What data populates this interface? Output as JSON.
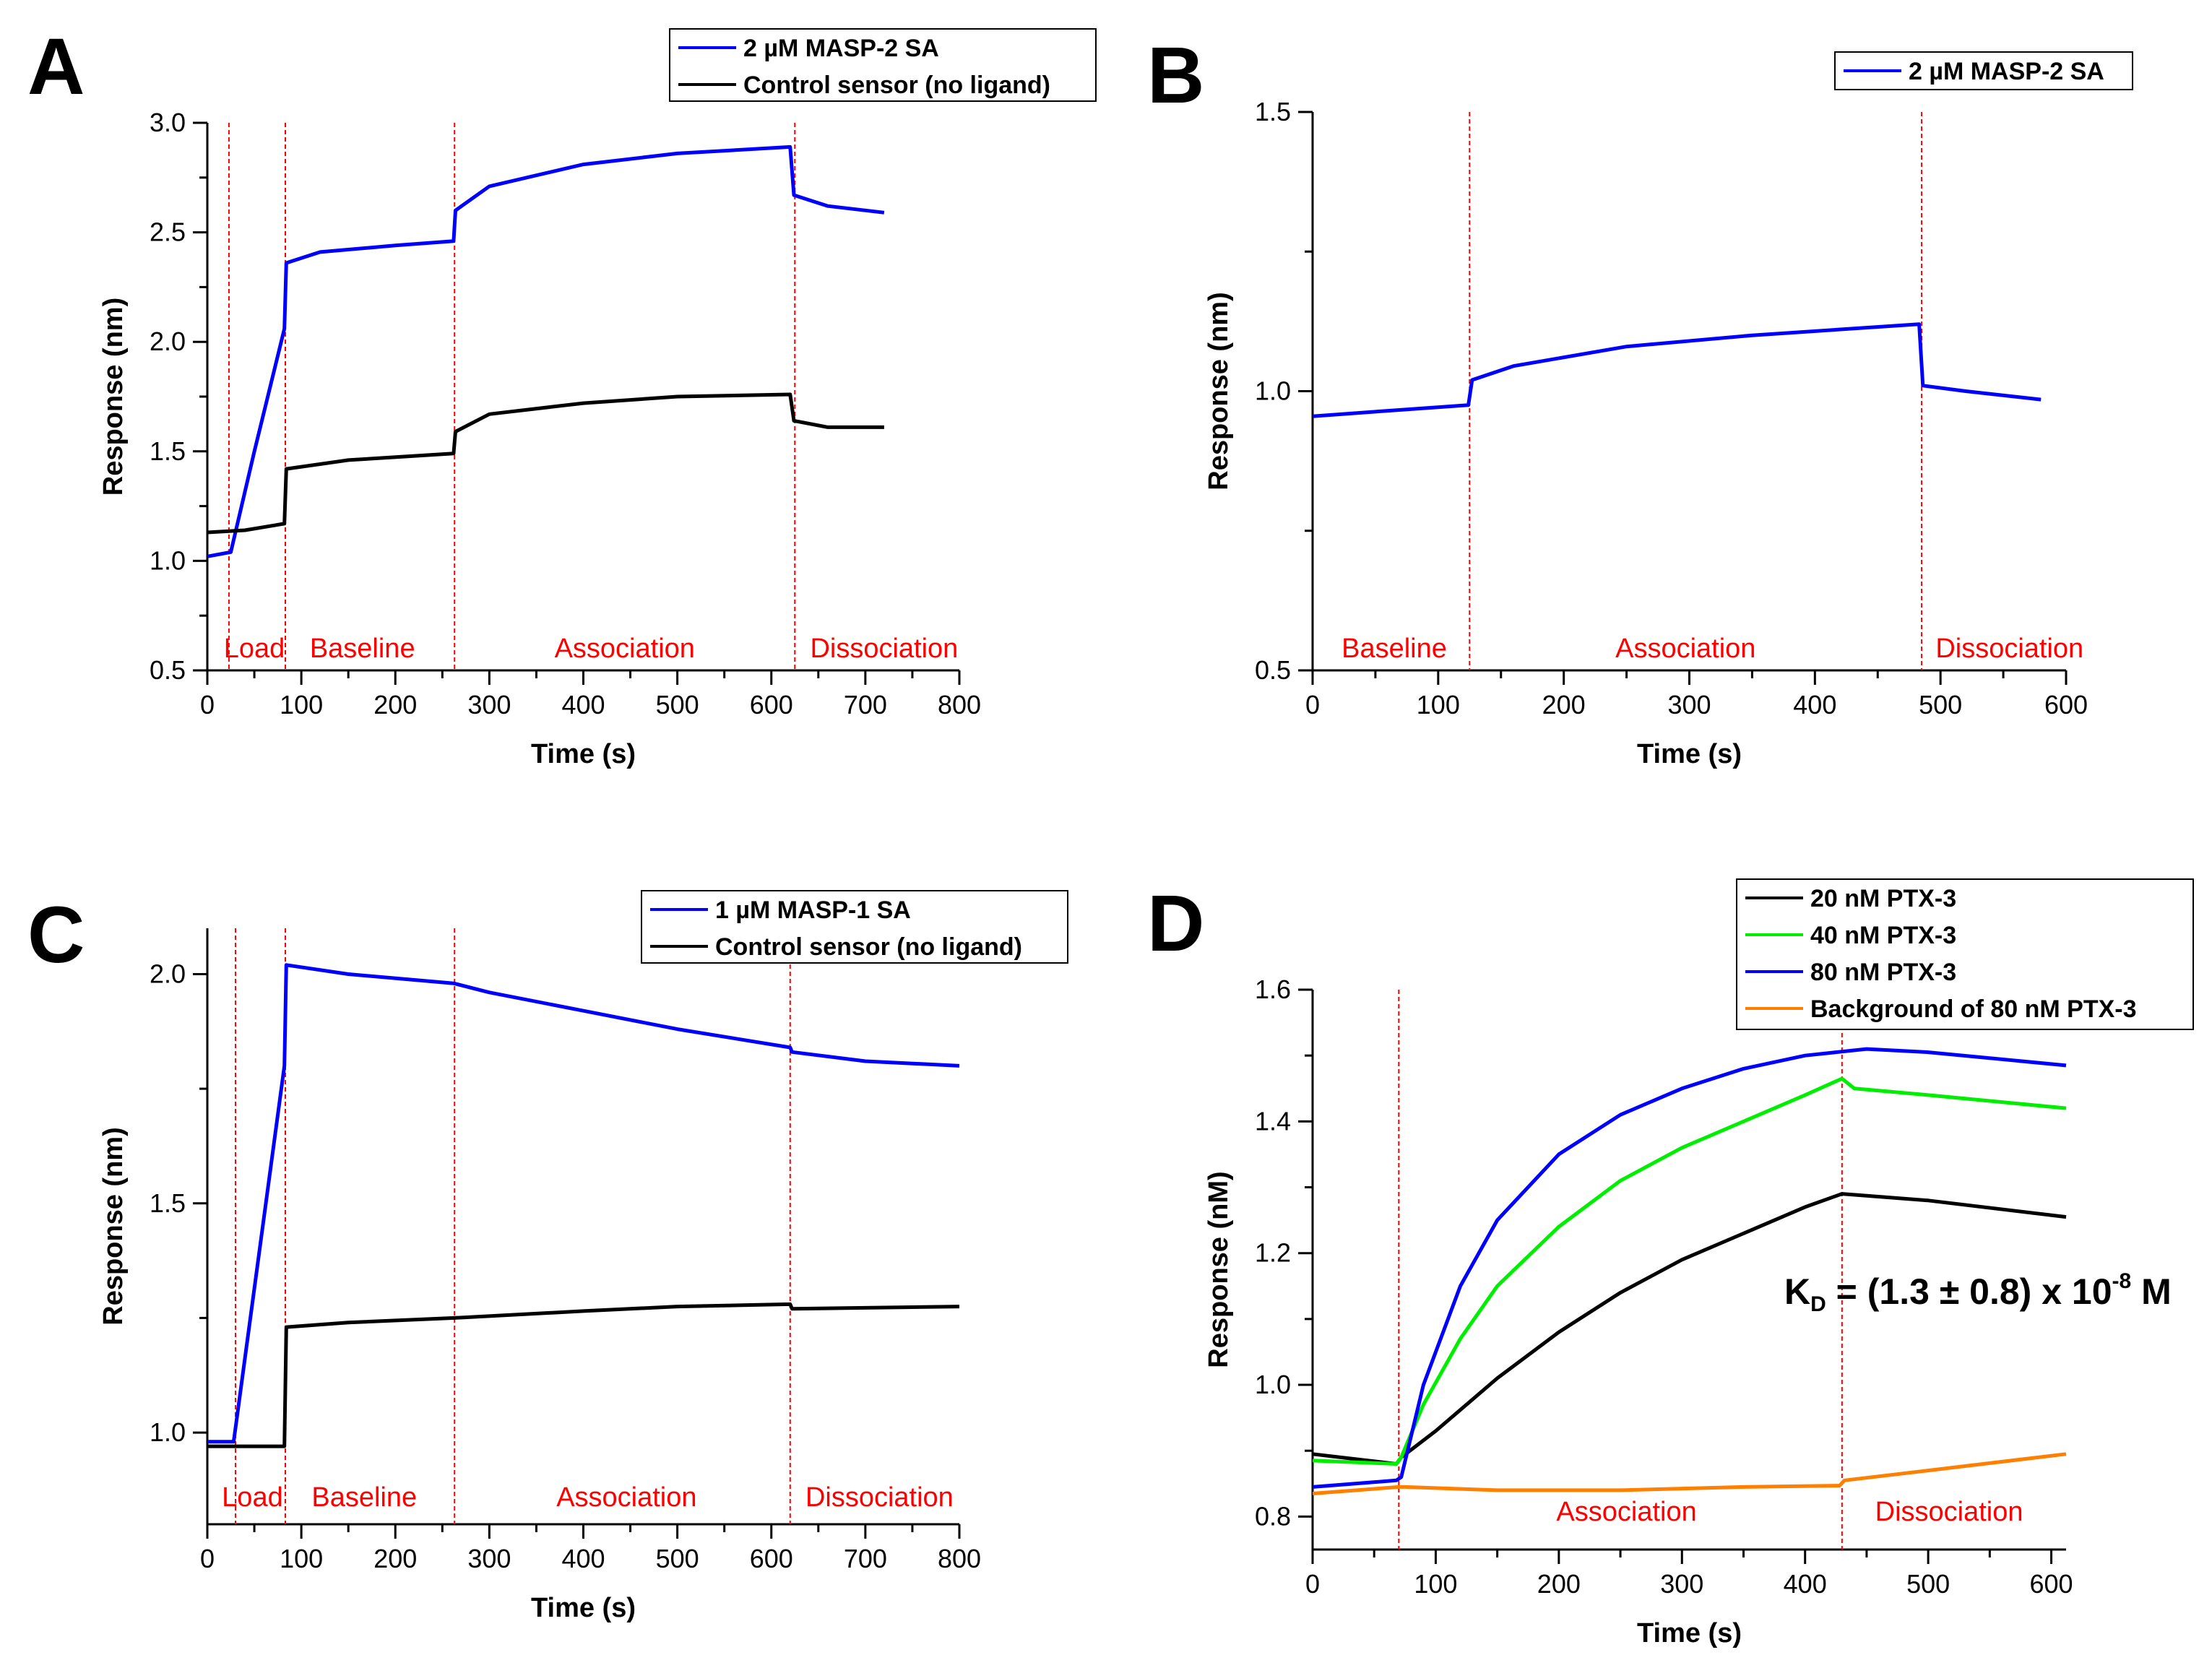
{
  "colors": {
    "axis": "#000000",
    "marker": "#ff0000",
    "phase_label": "#ff0000",
    "blue": "#0000ff",
    "black": "#000000",
    "green": "#00ee00",
    "orange": "#ff7f00"
  },
  "chart_data": [
    {
      "panel": "A",
      "type": "line",
      "xlabel": "Time (s)",
      "ylabel": "Response (nm)",
      "xlim": [
        0,
        800
      ],
      "ylim": [
        0.5,
        3.0
      ],
      "xticks": [
        "0",
        "100",
        "200",
        "300",
        "400",
        "500",
        "600",
        "700",
        "800"
      ],
      "yticks": [
        "0.5",
        "1.0",
        "1.5",
        "2.0",
        "2.5",
        "3.0"
      ],
      "markers": [
        23,
        83,
        263,
        625
      ],
      "phases": [
        {
          "label": "Load",
          "x": 50
        },
        {
          "label": "Baseline",
          "x": 165
        },
        {
          "label": "Association",
          "x": 444
        },
        {
          "label": "Dissociation",
          "x": 720
        }
      ],
      "legend": {
        "position": "top-right"
      },
      "series": [
        {
          "name": "2 µM MASP-2 SA",
          "color": "#0000ff",
          "points": [
            [
              0,
              1.02
            ],
            [
              25,
              1.04
            ],
            [
              50,
              1.5
            ],
            [
              82,
              2.06
            ],
            [
              84,
              2.36
            ],
            [
              120,
              2.41
            ],
            [
              200,
              2.44
            ],
            [
              262,
              2.46
            ],
            [
              264,
              2.6
            ],
            [
              300,
              2.71
            ],
            [
              400,
              2.81
            ],
            [
              500,
              2.86
            ],
            [
              620,
              2.89
            ],
            [
              624,
              2.67
            ],
            [
              660,
              2.62
            ],
            [
              720,
              2.59
            ]
          ]
        },
        {
          "name": "Control sensor (no ligand)",
          "color": "#000000",
          "points": [
            [
              0,
              1.13
            ],
            [
              40,
              1.14
            ],
            [
              82,
              1.17
            ],
            [
              84,
              1.42
            ],
            [
              150,
              1.46
            ],
            [
              262,
              1.49
            ],
            [
              264,
              1.59
            ],
            [
              300,
              1.67
            ],
            [
              400,
              1.72
            ],
            [
              500,
              1.75
            ],
            [
              620,
              1.76
            ],
            [
              624,
              1.64
            ],
            [
              660,
              1.61
            ],
            [
              720,
              1.61
            ]
          ]
        }
      ]
    },
    {
      "panel": "B",
      "type": "line",
      "xlabel": "Time (s)",
      "ylabel": "Response (nm)",
      "xlim": [
        0,
        600
      ],
      "ylim": [
        0.5,
        1.5
      ],
      "xticks": [
        "0",
        "100",
        "200",
        "300",
        "400",
        "500",
        "600"
      ],
      "yticks": [
        "0.5",
        "1.0",
        "1.5"
      ],
      "markers": [
        125,
        485
      ],
      "phases": [
        {
          "label": "Baseline",
          "x": 65
        },
        {
          "label": "Association",
          "x": 297
        },
        {
          "label": "Dissociation",
          "x": 555
        }
      ],
      "legend": {
        "position": "top-right"
      },
      "series": [
        {
          "name": "2 µM MASP-2 SA",
          "color": "#0000ff",
          "points": [
            [
              0,
              0.955
            ],
            [
              60,
              0.965
            ],
            [
              124,
              0.975
            ],
            [
              127,
              1.02
            ],
            [
              160,
              1.045
            ],
            [
              250,
              1.08
            ],
            [
              350,
              1.1
            ],
            [
              483,
              1.12
            ],
            [
              486,
              1.01
            ],
            [
              520,
              1.0
            ],
            [
              580,
              0.985
            ]
          ]
        }
      ]
    },
    {
      "panel": "C",
      "type": "line",
      "xlabel": "Time (s)",
      "ylabel": "Response (nm)",
      "xlim": [
        0,
        800
      ],
      "ylim": [
        0.8,
        2.1
      ],
      "xticks": [
        "0",
        "100",
        "200",
        "300",
        "400",
        "500",
        "600",
        "700",
        "800"
      ],
      "yticks": [
        "1.0",
        "1.5",
        "2.0"
      ],
      "markers": [
        30,
        83,
        263,
        620
      ],
      "phases": [
        {
          "label": "Load",
          "x": 48
        },
        {
          "label": "Baseline",
          "x": 167
        },
        {
          "label": "Association",
          "x": 446
        },
        {
          "label": "Dissociation",
          "x": 715
        }
      ],
      "legend": {
        "position": "top-right"
      },
      "series": [
        {
          "name": "1 µM MASP-1 SA",
          "color": "#0000ff",
          "points": [
            [
              0,
              0.98
            ],
            [
              28,
              0.98
            ],
            [
              32,
              1.04
            ],
            [
              82,
              1.8
            ],
            [
              84,
              2.02
            ],
            [
              150,
              2.0
            ],
            [
              262,
              1.98
            ],
            [
              300,
              1.96
            ],
            [
              400,
              1.92
            ],
            [
              500,
              1.88
            ],
            [
              620,
              1.84
            ],
            [
              622,
              1.83
            ],
            [
              700,
              1.81
            ],
            [
              800,
              1.8
            ]
          ]
        },
        {
          "name": "Control sensor (no ligand)",
          "color": "#000000",
          "points": [
            [
              0,
              0.97
            ],
            [
              82,
              0.97
            ],
            [
              84,
              1.23
            ],
            [
              150,
              1.24
            ],
            [
              263,
              1.25
            ],
            [
              400,
              1.265
            ],
            [
              500,
              1.275
            ],
            [
              620,
              1.28
            ],
            [
              622,
              1.27
            ],
            [
              800,
              1.275
            ]
          ]
        }
      ]
    },
    {
      "panel": "D",
      "type": "line",
      "xlabel": "Time (s)",
      "ylabel": "Response (nM)",
      "xlim": [
        0,
        612
      ],
      "ylim": [
        0.75,
        1.6
      ],
      "xticks": [
        "0",
        "100",
        "200",
        "300",
        "400",
        "500",
        "600"
      ],
      "yticks": [
        "0.8",
        "1.0",
        "1.2",
        "1.4",
        "1.6"
      ],
      "markers": [
        70,
        430
      ],
      "phases": [
        {
          "label": "Association",
          "x": 255
        },
        {
          "label": "Dissociation",
          "x": 517
        }
      ],
      "annotation": {
        "kd_main": "K",
        "kd_sub": "D",
        "kd_value": " = (1.3 ± 0.8) x 10",
        "kd_exp": "-8",
        "kd_unit": " M"
      },
      "legend": {
        "position": "top-right"
      },
      "series": [
        {
          "name": "20 nM PTX-3",
          "color": "#000000",
          "points": [
            [
              0,
              0.895
            ],
            [
              68,
              0.88
            ],
            [
              72,
              0.89
            ],
            [
              100,
              0.93
            ],
            [
              150,
              1.01
            ],
            [
              200,
              1.08
            ],
            [
              250,
              1.14
            ],
            [
              300,
              1.19
            ],
            [
              350,
              1.23
            ],
            [
              400,
              1.27
            ],
            [
              430,
              1.29
            ],
            [
              500,
              1.28
            ],
            [
              612,
              1.255
            ]
          ]
        },
        {
          "name": "40 nM PTX-3",
          "color": "#00ee00",
          "points": [
            [
              0,
              0.885
            ],
            [
              68,
              0.88
            ],
            [
              72,
              0.89
            ],
            [
              90,
              0.97
            ],
            [
              120,
              1.07
            ],
            [
              150,
              1.15
            ],
            [
              200,
              1.24
            ],
            [
              250,
              1.31
            ],
            [
              300,
              1.36
            ],
            [
              350,
              1.4
            ],
            [
              400,
              1.44
            ],
            [
              430,
              1.465
            ],
            [
              440,
              1.45
            ],
            [
              500,
              1.44
            ],
            [
              612,
              1.42
            ]
          ]
        },
        {
          "name": "80 nM PTX-3",
          "color": "#0000ff",
          "points": [
            [
              0,
              0.845
            ],
            [
              68,
              0.855
            ],
            [
              72,
              0.86
            ],
            [
              90,
              1.0
            ],
            [
              120,
              1.15
            ],
            [
              150,
              1.25
            ],
            [
              200,
              1.35
            ],
            [
              250,
              1.41
            ],
            [
              300,
              1.45
            ],
            [
              350,
              1.48
            ],
            [
              400,
              1.5
            ],
            [
              450,
              1.51
            ],
            [
              500,
              1.505
            ],
            [
              612,
              1.485
            ]
          ]
        },
        {
          "name": "Background of 80 nM PTX-3",
          "color": "#ff7f00",
          "points": [
            [
              0,
              0.835
            ],
            [
              70,
              0.845
            ],
            [
              75,
              0.845
            ],
            [
              150,
              0.84
            ],
            [
              250,
              0.84
            ],
            [
              350,
              0.845
            ],
            [
              428,
              0.847
            ],
            [
              432,
              0.855
            ],
            [
              500,
              0.87
            ],
            [
              612,
              0.895
            ]
          ]
        }
      ]
    }
  ],
  "labels": {
    "A": "A",
    "B": "B",
    "C": "C",
    "D": "D"
  }
}
